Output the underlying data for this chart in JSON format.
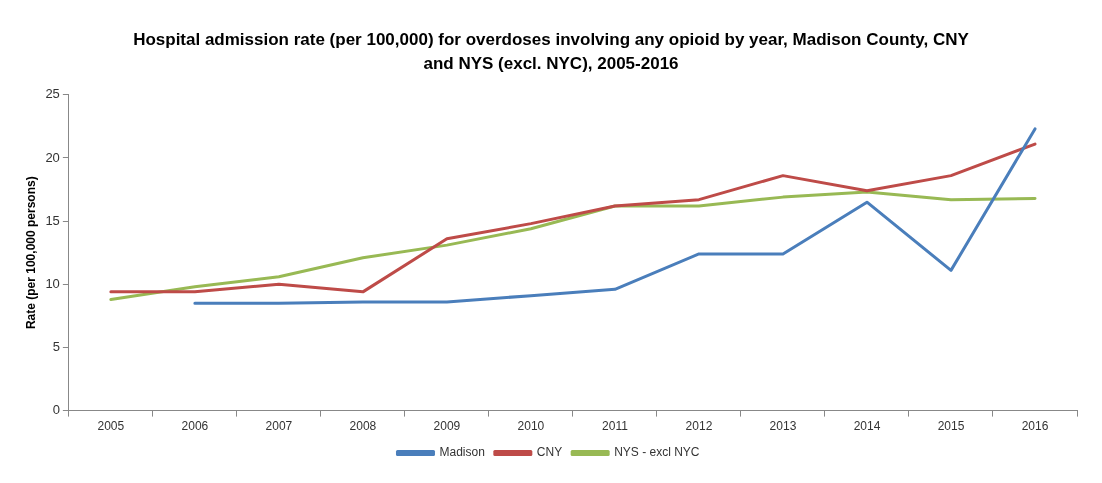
{
  "chart_data": {
    "type": "line",
    "title": "Hospital admission rate (per 100,000) for overdoses involving any opioid by year, Madison County, CNY and NYS (excl. NYC), 2005-2016",
    "ylabel": "Rate (per 100,000 persons)",
    "categories": [
      "2005",
      "2006",
      "2007",
      "2008",
      "2009",
      "2010",
      "2011",
      "2012",
      "2013",
      "2014",
      "2015",
      "2016"
    ],
    "series": [
      {
        "name": "Madison",
        "color": "#4a7ebb",
        "values": [
          null,
          8.5,
          8.5,
          8.6,
          8.6,
          9.1,
          9.6,
          12.4,
          12.4,
          16.5,
          11.1,
          22.3
        ]
      },
      {
        "name": "CNY",
        "color": "#be4b48",
        "values": [
          9.4,
          9.4,
          10.0,
          9.4,
          13.6,
          14.8,
          16.2,
          16.7,
          18.6,
          17.4,
          18.6,
          21.1
        ]
      },
      {
        "name": "NYS - excl NYC",
        "color": "#98b954",
        "values": [
          8.8,
          9.8,
          10.6,
          12.1,
          13.1,
          14.4,
          16.2,
          16.2,
          16.9,
          17.3,
          16.7,
          16.8
        ]
      }
    ],
    "ylim": [
      0,
      25
    ],
    "yticks": [
      0,
      5,
      10,
      15,
      20,
      25
    ],
    "grid": false,
    "legend": "bottom",
    "marker": "none",
    "line_style": "solid"
  }
}
